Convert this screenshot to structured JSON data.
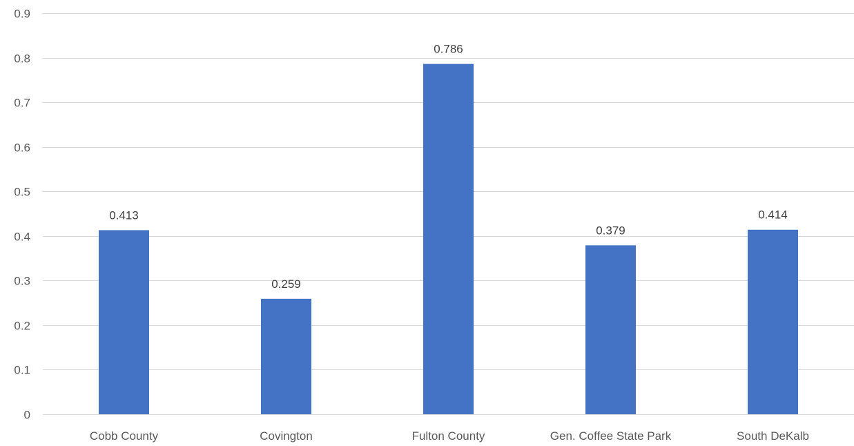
{
  "chart_data": {
    "type": "bar",
    "categories": [
      "Cobb County",
      "Covington",
      "Fulton County",
      "Gen. Coffee State Park",
      "South DeKalb"
    ],
    "values": [
      0.413,
      0.259,
      0.786,
      0.379,
      0.414
    ],
    "data_labels": [
      "0.413",
      "0.259",
      "0.786",
      "0.379",
      "0.414"
    ],
    "ylim": [
      0,
      0.9
    ],
    "yticks": [
      "0",
      "0.1",
      "0.2",
      "0.3",
      "0.4",
      "0.5",
      "0.6",
      "0.7",
      "0.8",
      "0.9"
    ],
    "grid": true,
    "legend": "none",
    "bar_color": "#4472C4",
    "grid_color": "#D9D9D9"
  }
}
